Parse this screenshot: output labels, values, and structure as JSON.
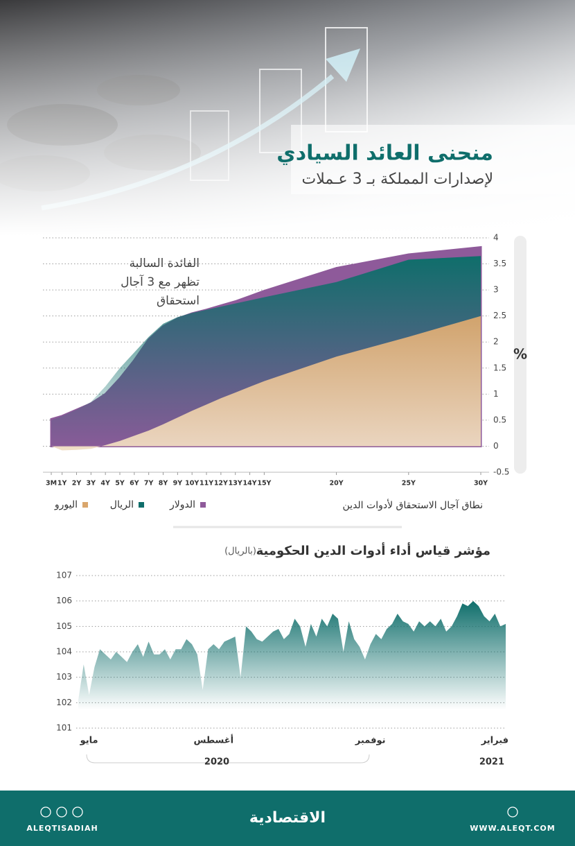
{
  "header": {
    "title": "منحنى العائد السيادي",
    "subtitle": "لإصدارات المملكة بـ 3 عـملات"
  },
  "chart_data": [
    {
      "type": "area",
      "x": [
        0.25,
        1,
        2,
        3,
        4,
        5,
        6,
        7,
        8,
        9,
        10,
        11,
        12,
        13,
        14,
        15,
        20,
        25,
        30
      ],
      "xlim": [
        0.25,
        30
      ],
      "xticks": [
        {
          "value": 0.25,
          "label": "3M"
        },
        {
          "value": 1,
          "label": "1Y"
        },
        {
          "value": 2,
          "label": "2Y"
        },
        {
          "value": 3,
          "label": "3Y"
        },
        {
          "value": 4,
          "label": "4Y"
        },
        {
          "value": 5,
          "label": "5Y"
        },
        {
          "value": 6,
          "label": "6Y"
        },
        {
          "value": 7,
          "label": "7Y"
        },
        {
          "value": 8,
          "label": "8Y"
        },
        {
          "value": 9,
          "label": "9Y"
        },
        {
          "value": 10,
          "label": "10Y"
        },
        {
          "value": 11,
          "label": "11Y"
        },
        {
          "value": 12,
          "label": "12Y"
        },
        {
          "value": 13,
          "label": "13Y"
        },
        {
          "value": 14,
          "label": "14Y"
        },
        {
          "value": 15,
          "label": "15Y"
        },
        {
          "value": 20,
          "label": "20Y"
        },
        {
          "value": 25,
          "label": "25Y"
        },
        {
          "value": 30,
          "label": "30Y"
        }
      ],
      "ylim": [
        -0.5,
        4
      ],
      "yticks": [
        4,
        3.5,
        3,
        2.5,
        2,
        1.5,
        1,
        0.5,
        0,
        -0.5
      ],
      "y_label": "%",
      "x_label": "نطاق آجال الاستحقاق لأدوات الدين",
      "annotation": [
        "الفائدة السالبة",
        "تظهر مع 3 آجال",
        "استحقاق"
      ],
      "grid": true,
      "series": [
        {
          "name": "الدولار",
          "color": "#8e5a9a",
          "values": [
            0.52,
            0.58,
            0.7,
            0.82,
            1.0,
            1.3,
            1.65,
            2.05,
            2.3,
            2.45,
            2.55,
            2.62,
            2.7,
            2.78,
            2.88,
            2.98,
            3.42,
            3.68,
            3.82
          ]
        },
        {
          "name": "الريال",
          "color": "#0f6e6b",
          "values": [
            0.5,
            0.58,
            0.7,
            0.85,
            1.15,
            1.5,
            1.8,
            2.1,
            2.35,
            2.48,
            2.56,
            2.62,
            2.68,
            2.74,
            2.8,
            2.86,
            3.15,
            3.58,
            3.65
          ]
        },
        {
          "name": "اليورو",
          "color": "#d9a66c",
          "values": [
            0,
            -0.08,
            -0.07,
            -0.05,
            0.02,
            0.1,
            0.2,
            0.3,
            0.42,
            0.55,
            0.68,
            0.8,
            0.92,
            1.03,
            1.14,
            1.25,
            1.72,
            2.1,
            2.5
          ]
        }
      ]
    },
    {
      "type": "area",
      "title": "مؤشر قياس أداء أدوات الدين الحكومية",
      "subtitle": "(بالريال)",
      "color": "#0f6e6b",
      "ylim": [
        101,
        107
      ],
      "yticks": [
        107,
        106,
        105,
        104,
        103,
        102,
        101
      ],
      "grid": true,
      "categories": [
        null,
        null,
        "مايو",
        null,
        null,
        null,
        null,
        null,
        null,
        null,
        null,
        null,
        null,
        null,
        null,
        null,
        null,
        null,
        null,
        null,
        null,
        null,
        null,
        null,
        null,
        "أغسطس",
        null,
        null,
        null,
        null,
        null,
        null,
        null,
        null,
        null,
        null,
        null,
        null,
        null,
        null,
        null,
        null,
        null,
        null,
        null,
        null,
        null,
        null,
        null,
        null,
        null,
        null,
        null,
        null,
        "نوفمبر",
        null,
        null,
        null,
        null,
        null,
        null,
        null,
        null,
        null,
        null,
        null,
        null,
        null,
        null,
        null,
        null,
        null,
        null,
        null,
        null,
        null,
        null,
        "فبراير",
        null,
        null
      ],
      "values": [
        102.1,
        103.5,
        102.3,
        103.4,
        104.1,
        103.9,
        103.7,
        104.0,
        103.8,
        103.6,
        104.0,
        104.3,
        103.8,
        104.4,
        103.9,
        103.9,
        104.1,
        103.7,
        104.1,
        104.1,
        104.5,
        104.3,
        103.9,
        102.5,
        104.1,
        104.3,
        104.1,
        104.4,
        104.5,
        104.6,
        103.0,
        105.0,
        104.8,
        104.5,
        104.4,
        104.6,
        104.8,
        104.9,
        104.5,
        104.7,
        105.3,
        105.0,
        104.2,
        105.1,
        104.6,
        105.3,
        105.0,
        105.5,
        105.3,
        104.0,
        105.2,
        104.5,
        104.2,
        103.7,
        104.3,
        104.7,
        104.5,
        104.9,
        105.1,
        105.5,
        105.2,
        105.1,
        104.8,
        105.2,
        105.0,
        105.2,
        105.0,
        105.3,
        104.8,
        105.0,
        105.4,
        105.9,
        105.8,
        106.0,
        105.8,
        105.4,
        105.2,
        105.5,
        105.0,
        105.1
      ],
      "year_labels": [
        "2020",
        "2021"
      ]
    }
  ],
  "footer": {
    "handle": "ALEQTISADIAH",
    "logo": "الاقتصادية",
    "website": "WWW.ALEQT.COM"
  }
}
